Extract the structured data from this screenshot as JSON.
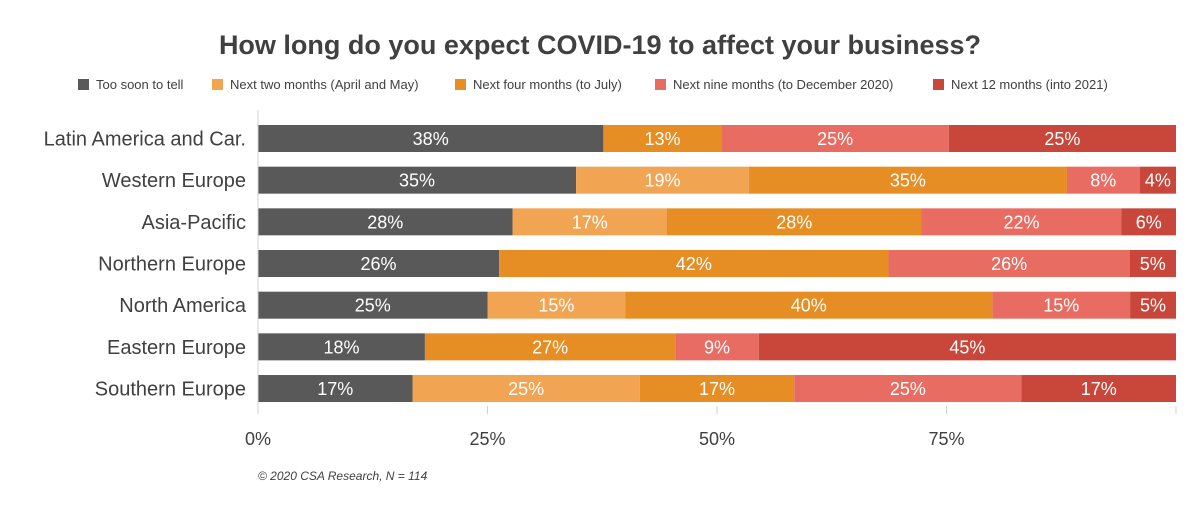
{
  "chart_data": {
    "type": "bar",
    "orientation": "horizontal",
    "stacked": true,
    "title": "How long do you expect COVID-19 to affect your business?",
    "categories": [
      "Latin America and Car.",
      "Western Europe",
      "Asia-Pacific",
      "Northern Europe",
      "North America",
      "Eastern Europe",
      "Southern Europe"
    ],
    "series": [
      {
        "name": "Too soon to tell",
        "color": "#595959",
        "values": [
          38,
          35,
          28,
          26,
          25,
          18,
          17
        ],
        "labels": [
          "38%",
          "35%",
          "28%",
          "26%",
          "25%",
          "18%",
          "17%"
        ]
      },
      {
        "name": "Next two months (April and May)",
        "color": "#F1A452",
        "values": [
          0,
          19,
          17,
          0,
          15,
          0,
          25
        ],
        "labels": [
          "",
          "19%",
          "17%",
          "",
          "15%",
          "",
          "25%"
        ]
      },
      {
        "name": "Next four months (to July)",
        "color": "#E68D24",
        "values": [
          13,
          35,
          28,
          42,
          40,
          27,
          17
        ],
        "labels": [
          "13%",
          "35%",
          "28%",
          "42%",
          "40%",
          "27%",
          "17%"
        ]
      },
      {
        "name": "Next nine months (to December 2020)",
        "color": "#E96C62",
        "values": [
          25,
          8,
          22,
          26,
          15,
          9,
          25
        ],
        "labels": [
          "25%",
          "8%",
          "22%",
          "26%",
          "15%",
          "9%",
          "25%"
        ]
      },
      {
        "name": "Next 12 months (into 2021)",
        "color": "#C9463B",
        "values": [
          25,
          4,
          6,
          5,
          5,
          45,
          17
        ],
        "labels": [
          "25%",
          "4%",
          "6%",
          "5%",
          "5%",
          "45%",
          "17%"
        ]
      }
    ],
    "xlim": [
      0,
      100
    ],
    "x_ticks": [
      0,
      25,
      50,
      75
    ],
    "x_tick_labels": [
      "0%",
      "25%",
      "50%",
      "75%"
    ],
    "legend_position": "top",
    "grid": false
  },
  "footnote": "© 2020 CSA Research, N = 114"
}
